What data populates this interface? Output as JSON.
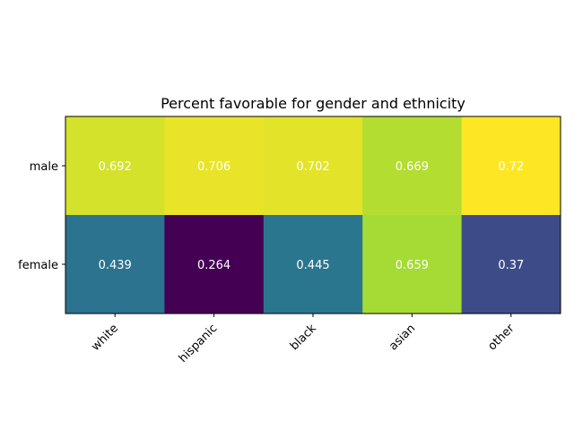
{
  "chart_data": {
    "type": "heatmap",
    "title": "Percent favorable for gender and ethnicity",
    "xlabel": "",
    "ylabel": "",
    "x_categories": [
      "white",
      "hispanic",
      "black",
      "asian",
      "other"
    ],
    "y_categories": [
      "male",
      "female"
    ],
    "values": [
      [
        0.692,
        0.706,
        0.702,
        0.669,
        0.72
      ],
      [
        0.439,
        0.264,
        0.445,
        0.659,
        0.37
      ]
    ],
    "value_labels": [
      [
        "0.692",
        "0.706",
        "0.702",
        "0.669",
        "0.72"
      ],
      [
        "0.439",
        "0.264",
        "0.445",
        "0.659",
        "0.37"
      ]
    ],
    "colormap": "viridis",
    "value_range": [
      0.264,
      0.72
    ],
    "grid": false,
    "x_tick_rotation_deg": 45
  }
}
